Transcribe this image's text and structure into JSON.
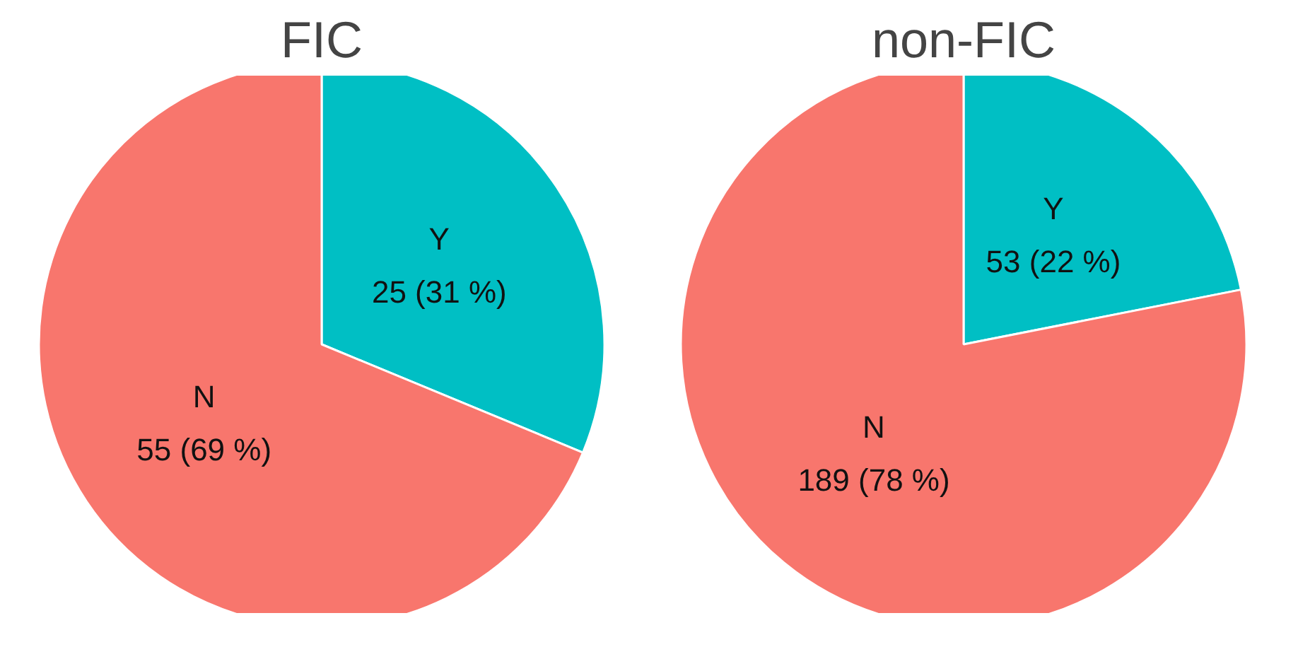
{
  "chart_data": [
    {
      "type": "pie",
      "title": "FIC",
      "categories": [
        "Y",
        "N"
      ],
      "values": [
        25,
        55
      ],
      "colors": [
        "#00bfc4",
        "#f8766d"
      ],
      "value_labels": [
        "25 (31 %)",
        "55 (69 %)"
      ]
    },
    {
      "type": "pie",
      "title": "non-FIC",
      "categories": [
        "Y",
        "N"
      ],
      "values": [
        53,
        189
      ],
      "colors": [
        "#00bfc4",
        "#f8766d"
      ],
      "value_labels": [
        "53 (22 %)",
        "189 (78 %)"
      ]
    }
  ]
}
